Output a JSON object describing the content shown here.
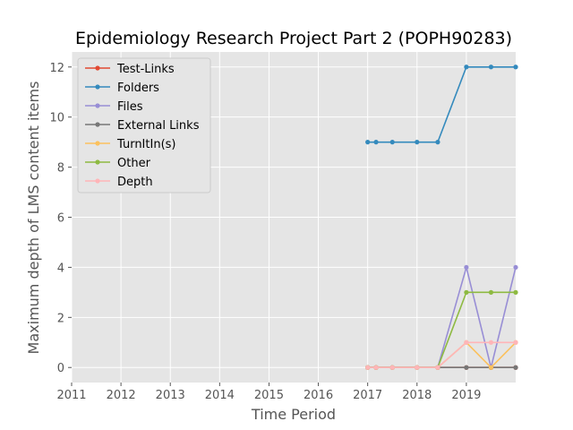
{
  "chart_data": {
    "type": "line",
    "title": "Epidemiology Research Project Part 2 (POPH90283)",
    "xlabel": "Time Period",
    "ylabel": "Maximum depth of LMS content items",
    "xlim": [
      2011,
      2020
    ],
    "ylim": [
      -0.6,
      12.6
    ],
    "x_ticks": [
      2011,
      2012,
      2013,
      2014,
      2015,
      2016,
      2017,
      2018,
      2019
    ],
    "y_ticks": [
      0,
      2,
      4,
      6,
      8,
      10,
      12
    ],
    "grid": true,
    "legend_position": "upper-left",
    "x": [
      2017.0,
      2017.17,
      2017.5,
      2018.0,
      2018.42,
      2019.0,
      2019.5,
      2020.0
    ],
    "series": [
      {
        "name": "Test-Links",
        "color": "#e24a33",
        "values": [
          0,
          0,
          0,
          0,
          0,
          0,
          0,
          0
        ]
      },
      {
        "name": "Folders",
        "color": "#348abd",
        "values": [
          9,
          9,
          9,
          9,
          9,
          12,
          12,
          12
        ]
      },
      {
        "name": "Files",
        "color": "#988ed5",
        "values": [
          0,
          0,
          0,
          0,
          0,
          4,
          0,
          4
        ]
      },
      {
        "name": "External Links",
        "color": "#777777",
        "values": [
          0,
          0,
          0,
          0,
          0,
          0,
          0,
          0
        ]
      },
      {
        "name": "TurnItIn(s)",
        "color": "#fbc15e",
        "values": [
          0,
          0,
          0,
          0,
          0,
          1,
          0,
          1
        ]
      },
      {
        "name": "Other",
        "color": "#8eba42",
        "values": [
          0,
          0,
          0,
          0,
          0,
          3,
          3,
          3
        ]
      },
      {
        "name": "Depth",
        "color": "#ffb5b8",
        "values": [
          0,
          0,
          0,
          0,
          0,
          1,
          1,
          1
        ]
      }
    ]
  }
}
